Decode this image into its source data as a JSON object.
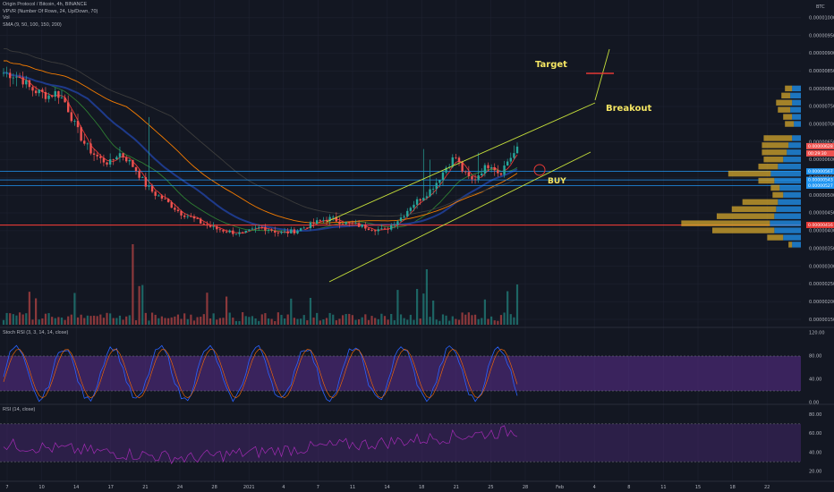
{
  "header": {
    "title": "Origin Protocol / Bitcoin, 4h, BINANCE",
    "vpvr": "VPVR (Number Of Rows, 24, Up/Down, 70)",
    "vol": "Vol",
    "sma": "SMA (9, 50, 100, 150, 200)",
    "currency": "BTC"
  },
  "indicators": {
    "stoch_label": "Stoch RSI (3, 3, 14, 14, close)",
    "rsi_label": "RSI (14, close)"
  },
  "colors": {
    "background": "#131722",
    "candle_up": "#26a69a",
    "candle_down": "#ef5350",
    "annotation": "#f5e663",
    "resistance": "#e53935",
    "support_blue": "#2196f3",
    "vpvr_up": "#2196f3",
    "vpvr_down": "#d4a72c",
    "oscillator_band": "#5b2d8e"
  },
  "annotations": {
    "target": "Target",
    "breakout": "Breakout",
    "buy": "BUY"
  },
  "price_axis": {
    "ticks": [
      "0.00001000",
      "0.00000950",
      "0.00000900",
      "0.00000850",
      "0.00000800",
      "0.00000750",
      "0.00000700",
      "0.00000650",
      "0.00000600",
      "0.00000550",
      "0.00000500",
      "0.00000450",
      "0.00000400",
      "0.00000350",
      "0.00000300",
      "0.00000250",
      "0.00000200",
      "0.00000150"
    ],
    "tags": [
      {
        "label": "0.00000628",
        "color": "#ef5350"
      },
      {
        "label": "00:29:30",
        "color": "#ef5350"
      },
      {
        "label": "0.00000567",
        "color": "#2196f3"
      },
      {
        "label": "0.00000543",
        "color": "#2196f3"
      },
      {
        "label": "0.00000527",
        "color": "#2196f3"
      },
      {
        "label": "0.00000416",
        "color": "#e53935"
      }
    ]
  },
  "stoch_axis": [
    "120.00",
    "80.00",
    "40.00",
    "0.00"
  ],
  "rsi_axis": [
    "80.00",
    "60.00",
    "40.00",
    "20.00"
  ],
  "date_axis": [
    "7",
    "10",
    "14",
    "17",
    "21",
    "24",
    "28",
    "2021",
    "4",
    "7",
    "11",
    "14",
    "18",
    "21",
    "25",
    "28",
    "Feb",
    "4",
    "8",
    "11",
    "15",
    "18",
    "22"
  ],
  "chart_data": {
    "type": "candlestick",
    "title": "Origin Protocol / Bitcoin, 4h, BINANCE",
    "ylabel": "BTC",
    "ylim": [
      1.3e-06,
      1.05e-05
    ],
    "x_start_label": "7",
    "x_end_label": "25",
    "close_path": [
      8.45e-06,
      8.4e-06,
      8.3e-06,
      8e-06,
      7.9e-06,
      7.8e-06,
      7.9e-06,
      7.6e-06,
      7e-06,
      6.5e-06,
      6.2e-06,
      6e-06,
      5.9e-06,
      6.2e-06,
      6e-06,
      5.7e-06,
      5.3e-06,
      5.05e-06,
      4.9e-06,
      4.7e-06,
      4.5e-06,
      4.4e-06,
      4.25e-06,
      4.15e-06,
      4.05e-06,
      4e-06,
      3.95e-06,
      3.9e-06,
      4e-06,
      4.1e-06,
      4.05e-06,
      3.95e-06,
      3.95e-06,
      4e-06,
      4.1e-06,
      4.2e-06,
      4.3e-06,
      4.35e-06,
      4.25e-06,
      4.2e-06,
      4.15e-06,
      4.1e-06,
      4.05e-06,
      4e-06,
      4.2e-06,
      4.4e-06,
      4.7e-06,
      4.9e-06,
      5.1e-06,
      5.4e-06,
      5.8e-06,
      6.1e-06,
      5.6e-06,
      5.4e-06,
      5.7e-06,
      5.9e-06,
      5.6e-06,
      6e-06,
      6.28e-06
    ],
    "levels": {
      "resistance": 4.16e-06,
      "support_blue": [
        5.67e-06,
        5.43e-06,
        5.27e-06
      ]
    },
    "target_marker": 8.6e-06,
    "sma_lengths": [
      9,
      50,
      100,
      150,
      200
    ],
    "vpvr_rows": [
      {
        "price": 8e-06,
        "up": 0.1,
        "down": 0.08
      },
      {
        "price": 7.8e-06,
        "up": 0.12,
        "down": 0.1
      },
      {
        "price": 7.6e-06,
        "up": 0.1,
        "down": 0.18
      },
      {
        "price": 7.4e-06,
        "up": 0.12,
        "down": 0.14
      },
      {
        "price": 7.2e-06,
        "up": 0.1,
        "down": 0.1
      },
      {
        "price": 7e-06,
        "up": 0.08,
        "down": 0.1
      },
      {
        "price": 6.6e-06,
        "up": 0.1,
        "down": 0.32
      },
      {
        "price": 6.4e-06,
        "up": 0.14,
        "down": 0.3
      },
      {
        "price": 6.2e-06,
        "up": 0.16,
        "down": 0.28
      },
      {
        "price": 6e-06,
        "up": 0.2,
        "down": 0.22
      },
      {
        "price": 5.8e-06,
        "up": 0.26,
        "down": 0.22
      },
      {
        "price": 5.6e-06,
        "up": 0.34,
        "down": 0.48
      },
      {
        "price": 5.4e-06,
        "up": 0.3,
        "down": 0.18
      },
      {
        "price": 5.2e-06,
        "up": 0.24,
        "down": 0.1
      },
      {
        "price": 5e-06,
        "up": 0.2,
        "down": 0.12
      },
      {
        "price": 4.8e-06,
        "up": 0.26,
        "down": 0.4
      },
      {
        "price": 4.6e-06,
        "up": 0.28,
        "down": 0.5
      },
      {
        "price": 4.4e-06,
        "up": 0.3,
        "down": 0.65
      },
      {
        "price": 4.2e-06,
        "up": 0.35,
        "down": 1.0
      },
      {
        "price": 4e-06,
        "up": 0.3,
        "down": 0.7
      },
      {
        "price": 3.8e-06,
        "up": 0.2,
        "down": 0.18
      },
      {
        "price": 3.6e-06,
        "up": 0.1,
        "down": 0.04
      }
    ],
    "stoch_band": [
      20,
      80
    ],
    "rsi_band": [
      30,
      70
    ]
  }
}
